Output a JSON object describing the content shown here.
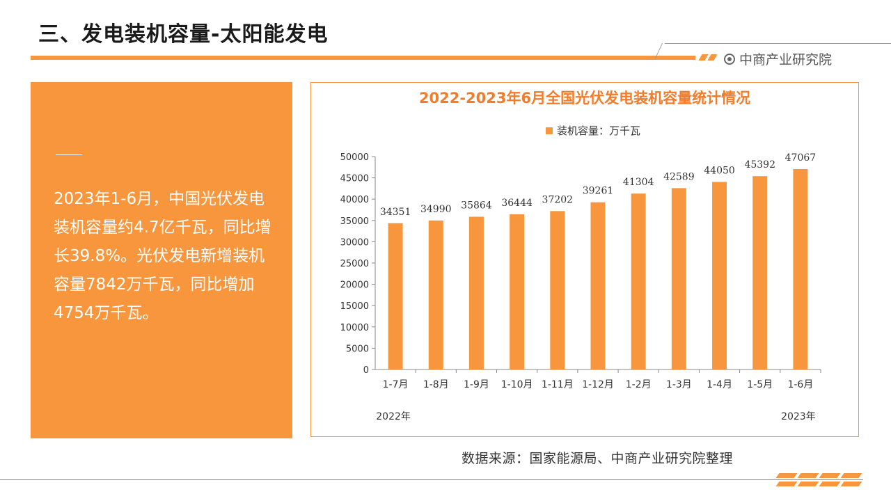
{
  "page": {
    "title": "三、发电装机容量-太阳能发电",
    "brand": "中商产业研究院",
    "accent_color": "#f7963d",
    "brand_icon": "target-circle-icon"
  },
  "summary": {
    "text": "2023年1-6月，中国光伏发电装机容量约4.7亿千瓦，同比增长39.8%。光伏发电新增装机容量7842万千瓦，同比增加4754万千瓦。"
  },
  "source": "数据来源：国家能源局、中商产业研究院整理",
  "chart_data": {
    "type": "bar",
    "title": "2022-2023年6月全国光伏发电装机容量统计情况",
    "legend": "装机容量：万千瓦",
    "legend_position": "top-center",
    "categories": [
      "1-7月",
      "1-8月",
      "1-9月",
      "1-10月",
      "1-11月",
      "1-12月",
      "1-2月",
      "1-3月",
      "1-4月",
      "1-5月",
      "1-6月"
    ],
    "series": [
      {
        "name": "装机容量：万千瓦",
        "values": [
          34351,
          34990,
          35864,
          36444,
          37202,
          39261,
          41304,
          42589,
          44050,
          45392,
          47067
        ],
        "color": "#f7963d"
      }
    ],
    "data_labels": [
      "34351",
      "34990",
      "35864",
      "36444",
      "37202",
      "39261",
      "41304",
      "42589",
      "44050",
      "45392",
      "47067"
    ],
    "y_ticks": [
      "0",
      "5000",
      "10000",
      "15000",
      "20000",
      "25000",
      "30000",
      "35000",
      "40000",
      "45000",
      "50000"
    ],
    "ylim": [
      0,
      50000
    ],
    "year_labels": [
      "2022年",
      "2023年"
    ],
    "grid": false
  }
}
